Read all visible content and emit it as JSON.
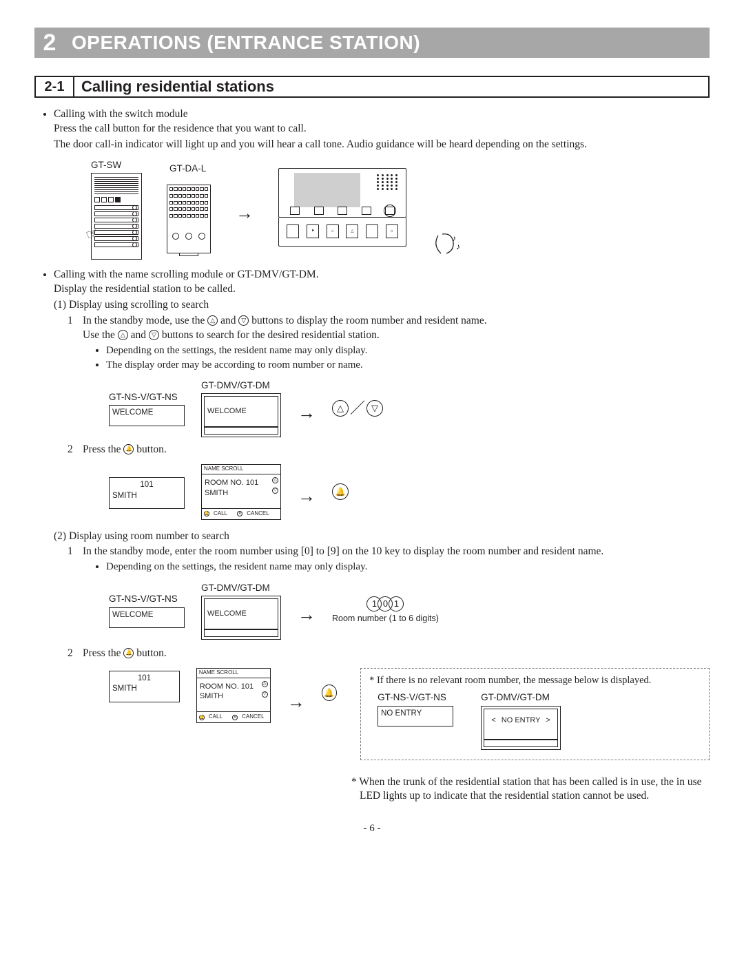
{
  "chapter": {
    "num": "2",
    "title": "OPERATIONS (ENTRANCE STATION)"
  },
  "section": {
    "num": "2-1",
    "title": "Calling residential stations"
  },
  "switch_module": {
    "heading": "Calling with the switch module",
    "line1": "Press the call button for the residence that you want to call.",
    "line2": "The door call-in indicator will light up and you will hear a call tone. Audio guidance will be heard depending on the settings.",
    "labels": {
      "sw": "GT-SW",
      "dal": "GT-DA-L"
    }
  },
  "scrolling_module": {
    "heading": "Calling with the name scrolling module or GT-DMV/GT-DM.",
    "line1": "Display the residential station to be called.",
    "sub1_title": "(1) Display using scrolling to search",
    "step1_a": "In the standby mode, use the ",
    "step1_b": " and ",
    "step1_c": " buttons to display the room number and resident name.",
    "step1_line2a": "Use the ",
    "step1_line2b": " and ",
    "step1_line2c": " buttons to search for the desired residential station.",
    "bullets1": [
      "Depending on the settings, the resident name may only display.",
      "The display order may be according to room number or name."
    ],
    "labels": {
      "ns": "GT-NS-V/GT-NS",
      "dm": "GT-DMV/GT-DM"
    },
    "welcome": "WELCOME",
    "name_scroll": "NAME SCROLL",
    "room_no": "ROOM NO. 101",
    "smith": "SMITH",
    "room101": "101",
    "call": "CALL",
    "cancel": "CANCEL",
    "step2": "Press the ",
    "step2b": " button."
  },
  "room_number": {
    "sub2_title": "(2) Display using room number to search",
    "step1": "In the standby mode, enter the room number using [0] to [9] on the 10 key to display the room number and resident name.",
    "bullet": "Depending on the settings, the resident name may only display.",
    "example_digits": [
      "1",
      "0",
      "1"
    ],
    "caption": "Room number (1 to 6 digits)"
  },
  "no_entry_box": {
    "star": "* If there is no relevant room number, the message below is displayed.",
    "ns_label": "GT-NS-V/GT-NS",
    "dm_label": "GT-DMV/GT-DM",
    "no_entry": "NO ENTRY"
  },
  "foot_note": "* When the trunk of the residential station that has been called is in use, the in use LED lights up to indicate that the residential station cannot be used.",
  "page": "- 6 -",
  "colors": {
    "chapter_bg": "#a7a7a7",
    "text": "#231f20",
    "screen_gray": "#cfcfcf"
  }
}
